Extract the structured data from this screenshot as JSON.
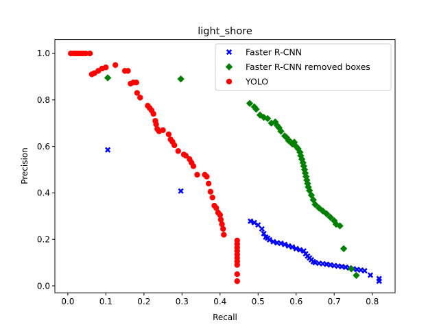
{
  "chart_data": {
    "type": "scatter",
    "title": "light_shore",
    "xlabel": "Recall",
    "ylabel": "Precision",
    "xlim": [
      -0.034,
      0.86
    ],
    "ylim": [
      -0.03,
      1.06
    ],
    "xticks": [
      "0.0",
      "0.1",
      "0.2",
      "0.3",
      "0.4",
      "0.5",
      "0.6",
      "0.7",
      "0.8"
    ],
    "yticks": [
      "0.0",
      "0.2",
      "0.4",
      "0.6",
      "0.8",
      "1.0"
    ],
    "xtick_values": [
      0.0,
      0.1,
      0.2,
      0.3,
      0.4,
      0.5,
      0.6,
      0.7,
      0.8
    ],
    "ytick_values": [
      0.0,
      0.2,
      0.4,
      0.6,
      0.8,
      1.0
    ],
    "grid": false,
    "legend_position": "top-right",
    "series": [
      {
        "name": "Faster R-CNN",
        "color": "#0000ff",
        "marker": "X",
        "points": [
          [
            0.105,
            0.585
          ],
          [
            0.297,
            0.408
          ],
          [
            0.48,
            0.278
          ],
          [
            0.49,
            0.272
          ],
          [
            0.5,
            0.262
          ],
          [
            0.51,
            0.245
          ],
          [
            0.515,
            0.225
          ],
          [
            0.52,
            0.21
          ],
          [
            0.525,
            0.205
          ],
          [
            0.53,
            0.198
          ],
          [
            0.54,
            0.19
          ],
          [
            0.55,
            0.185
          ],
          [
            0.56,
            0.183
          ],
          [
            0.57,
            0.178
          ],
          [
            0.58,
            0.172
          ],
          [
            0.59,
            0.167
          ],
          [
            0.6,
            0.16
          ],
          [
            0.61,
            0.155
          ],
          [
            0.62,
            0.15
          ],
          [
            0.625,
            0.138
          ],
          [
            0.63,
            0.128
          ],
          [
            0.635,
            0.12
          ],
          [
            0.64,
            0.112
          ],
          [
            0.645,
            0.104
          ],
          [
            0.65,
            0.1
          ],
          [
            0.66,
            0.097
          ],
          [
            0.67,
            0.095
          ],
          [
            0.68,
            0.093
          ],
          [
            0.69,
            0.09
          ],
          [
            0.7,
            0.087
          ],
          [
            0.71,
            0.085
          ],
          [
            0.72,
            0.083
          ],
          [
            0.73,
            0.08
          ],
          [
            0.74,
            0.077
          ],
          [
            0.75,
            0.073
          ],
          [
            0.76,
            0.07
          ],
          [
            0.77,
            0.068
          ],
          [
            0.78,
            0.065
          ],
          [
            0.795,
            0.046
          ],
          [
            0.818,
            0.031
          ],
          [
            0.818,
            0.02
          ]
        ]
      },
      {
        "name": "Faster R-CNN removed boxes",
        "color": "#008000",
        "marker": "D",
        "points": [
          [
            0.105,
            0.895
          ],
          [
            0.297,
            0.89
          ],
          [
            0.478,
            0.785
          ],
          [
            0.49,
            0.77
          ],
          [
            0.495,
            0.76
          ],
          [
            0.505,
            0.735
          ],
          [
            0.515,
            0.725
          ],
          [
            0.525,
            0.72
          ],
          [
            0.535,
            0.7
          ],
          [
            0.545,
            0.705
          ],
          [
            0.55,
            0.69
          ],
          [
            0.555,
            0.68
          ],
          [
            0.56,
            0.665
          ],
          [
            0.57,
            0.645
          ],
          [
            0.575,
            0.638
          ],
          [
            0.58,
            0.625
          ],
          [
            0.585,
            0.62
          ],
          [
            0.59,
            0.61
          ],
          [
            0.595,
            0.618
          ],
          [
            0.6,
            0.6
          ],
          [
            0.605,
            0.59
          ],
          [
            0.61,
            0.575
          ],
          [
            0.612,
            0.56
          ],
          [
            0.615,
            0.545
          ],
          [
            0.618,
            0.53
          ],
          [
            0.62,
            0.515
          ],
          [
            0.622,
            0.5
          ],
          [
            0.624,
            0.485
          ],
          [
            0.626,
            0.47
          ],
          [
            0.628,
            0.455
          ],
          [
            0.63,
            0.44
          ],
          [
            0.632,
            0.425
          ],
          [
            0.635,
            0.41
          ],
          [
            0.64,
            0.39
          ],
          [
            0.645,
            0.37
          ],
          [
            0.65,
            0.35
          ],
          [
            0.66,
            0.335
          ],
          [
            0.67,
            0.322
          ],
          [
            0.68,
            0.31
          ],
          [
            0.69,
            0.295
          ],
          [
            0.7,
            0.28
          ],
          [
            0.705,
            0.265
          ],
          [
            0.715,
            0.258
          ],
          [
            0.725,
            0.16
          ],
          [
            0.745,
            0.073
          ],
          [
            0.758,
            0.045
          ]
        ]
      },
      {
        "name": "YOLO",
        "color": "#ff0000",
        "marker": "o",
        "points": [
          [
            0.008,
            1.0
          ],
          [
            0.015,
            1.0
          ],
          [
            0.02,
            1.0
          ],
          [
            0.025,
            1.0
          ],
          [
            0.03,
            1.0
          ],
          [
            0.035,
            1.0
          ],
          [
            0.04,
            1.0
          ],
          [
            0.047,
            1.0
          ],
          [
            0.058,
            1.0
          ],
          [
            0.063,
            0.91
          ],
          [
            0.07,
            0.915
          ],
          [
            0.08,
            0.925
          ],
          [
            0.09,
            0.935
          ],
          [
            0.1,
            0.94
          ],
          [
            0.125,
            0.95
          ],
          [
            0.15,
            0.925
          ],
          [
            0.158,
            0.925
          ],
          [
            0.165,
            0.87
          ],
          [
            0.172,
            0.875
          ],
          [
            0.18,
            0.875
          ],
          [
            0.182,
            0.83
          ],
          [
            0.19,
            0.81
          ],
          [
            0.21,
            0.775
          ],
          [
            0.215,
            0.765
          ],
          [
            0.22,
            0.755
          ],
          [
            0.225,
            0.74
          ],
          [
            0.23,
            0.71
          ],
          [
            0.232,
            0.695
          ],
          [
            0.235,
            0.675
          ],
          [
            0.24,
            0.665
          ],
          [
            0.25,
            0.67
          ],
          [
            0.265,
            0.652
          ],
          [
            0.27,
            0.63
          ],
          [
            0.275,
            0.62
          ],
          [
            0.28,
            0.605
          ],
          [
            0.29,
            0.58
          ],
          [
            0.305,
            0.565
          ],
          [
            0.31,
            0.56
          ],
          [
            0.32,
            0.545
          ],
          [
            0.325,
            0.53
          ],
          [
            0.33,
            0.515
          ],
          [
            0.34,
            0.478
          ],
          [
            0.36,
            0.478
          ],
          [
            0.365,
            0.47
          ],
          [
            0.37,
            0.44
          ],
          [
            0.375,
            0.405
          ],
          [
            0.38,
            0.38
          ],
          [
            0.385,
            0.345
          ],
          [
            0.39,
            0.335
          ],
          [
            0.395,
            0.315
          ],
          [
            0.4,
            0.305
          ],
          [
            0.402,
            0.285
          ],
          [
            0.405,
            0.265
          ],
          [
            0.408,
            0.245
          ],
          [
            0.41,
            0.22
          ],
          [
            0.445,
            0.195
          ],
          [
            0.445,
            0.18
          ],
          [
            0.445,
            0.165
          ],
          [
            0.445,
            0.15
          ],
          [
            0.445,
            0.135
          ],
          [
            0.445,
            0.12
          ],
          [
            0.445,
            0.105
          ],
          [
            0.445,
            0.09
          ],
          [
            0.445,
            0.05
          ],
          [
            0.445,
            0.02
          ]
        ]
      }
    ]
  }
}
